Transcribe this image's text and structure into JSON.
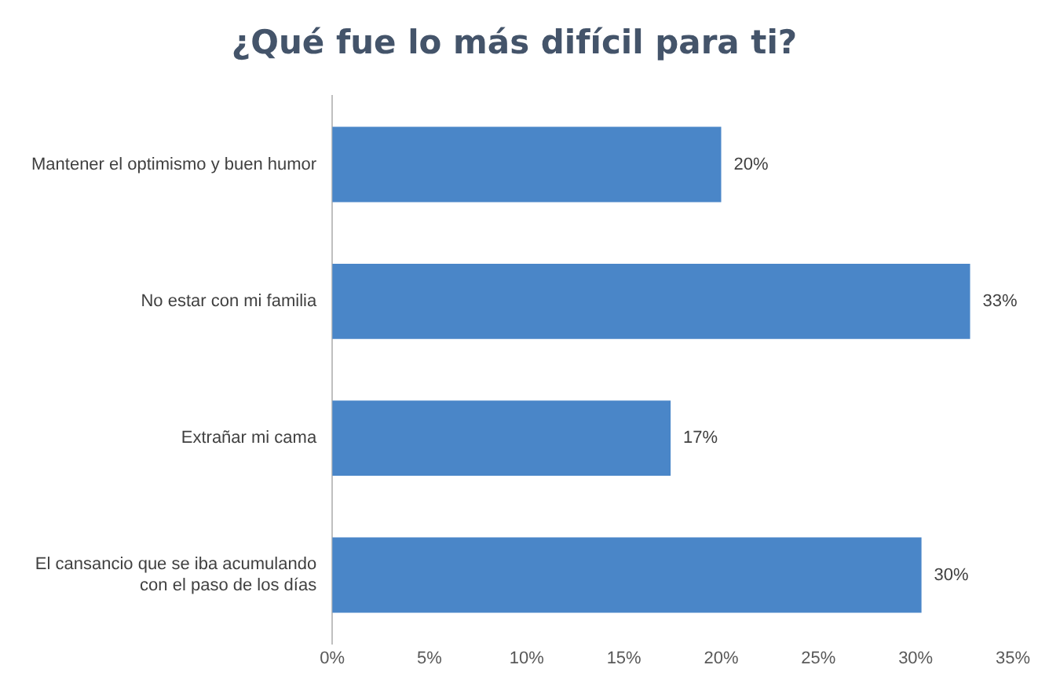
{
  "chart_data": {
    "type": "bar",
    "orientation": "horizontal",
    "title": "¿Qué fue lo más difícil para ti?",
    "categories": [
      "Mantener el optimismo y buen humor",
      "No estar con mi familia",
      "Extrañar mi cama",
      "El cansancio que se iba acumulando con el paso de los días"
    ],
    "values": [
      20,
      32.8,
      17.4,
      30.3
    ],
    "value_labels": [
      "20%",
      "33%",
      "17%",
      "30%"
    ],
    "color": "#4a86c8",
    "xlim": [
      0,
      35
    ],
    "xticks": [
      {
        "value": 0,
        "label": "0%"
      },
      {
        "value": 5,
        "label": "5%"
      },
      {
        "value": 10,
        "label": "10%"
      },
      {
        "value": 15,
        "label": "15%"
      },
      {
        "value": 20,
        "label": "20%"
      },
      {
        "value": 25,
        "label": "25%"
      },
      {
        "value": 30,
        "label": "30%"
      },
      {
        "value": 35,
        "label": "35%"
      }
    ],
    "grid": false,
    "legend": false
  }
}
